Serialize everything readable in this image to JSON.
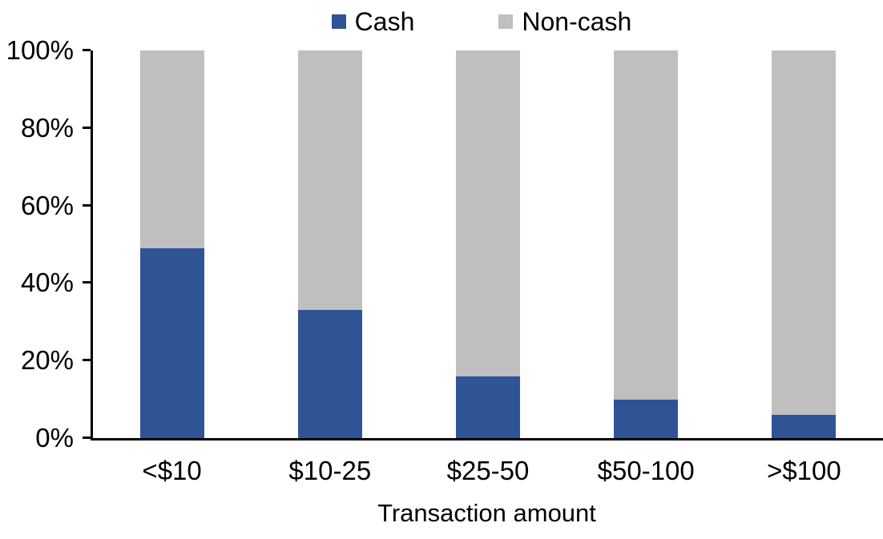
{
  "chart_data": {
    "type": "bar",
    "stacked": true,
    "stacked_100_percent": true,
    "title": "",
    "xlabel": "Transaction amount",
    "ylabel": "",
    "categories": [
      "<$10",
      "$10-25",
      "$25-50",
      "$50-100",
      ">$100"
    ],
    "series": [
      {
        "name": "Cash",
        "color": "#2F5496",
        "values": [
          49,
          33,
          16,
          10,
          6
        ]
      },
      {
        "name": "Non-cash",
        "color": "#BFBFBF",
        "values": [
          51,
          67,
          84,
          90,
          94
        ]
      }
    ],
    "ylim": [
      0,
      100
    ],
    "yticks": [
      "0%",
      "20%",
      "40%",
      "60%",
      "80%",
      "100%"
    ],
    "grid": false,
    "legend_position": "top",
    "axis_color": "#000000",
    "text_color": "#000000",
    "background_color": "#FFFFFF"
  }
}
